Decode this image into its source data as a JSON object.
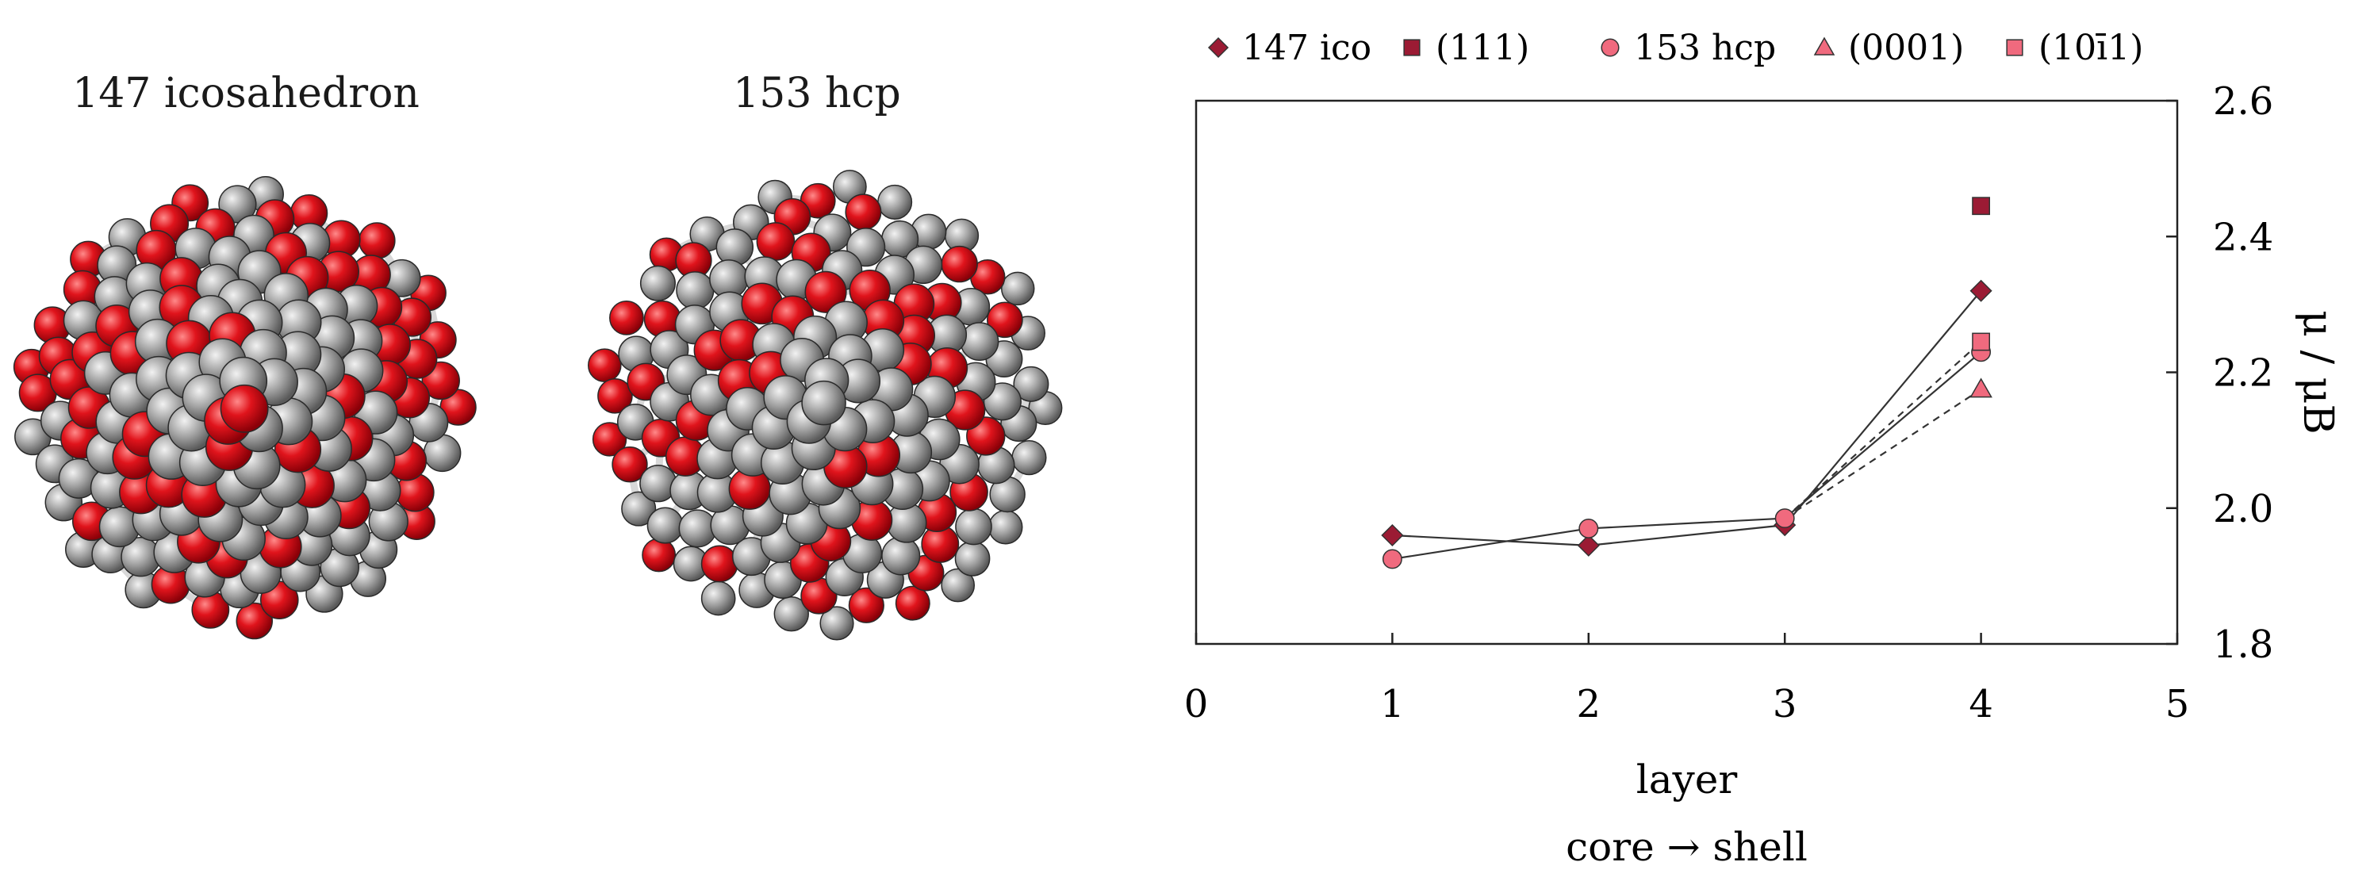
{
  "panels": {
    "ico_title": "147 icosahedron",
    "hcp_title": "153 hcp"
  },
  "colors": {
    "atom_red": "#e0141c",
    "atom_gray": "#9a9a9a",
    "dark_red": "#9b1b34",
    "pink": "#f06a7e"
  },
  "chart_data": {
    "type": "scatter",
    "xlabel": "layer",
    "xlabel2": "core → shell",
    "ylabel": "μ / μB",
    "xlim": [
      0,
      5
    ],
    "ylim": [
      1.8,
      2.6
    ],
    "xticks": [
      0,
      1,
      2,
      3,
      4,
      5
    ],
    "yticks": [
      1.8,
      2.0,
      2.2,
      2.4,
      2.6
    ],
    "grid": false,
    "legend_position": "top",
    "series": [
      {
        "name": "147 ico",
        "marker": "diamond",
        "color": "#9b1b34",
        "line": "solid",
        "x": [
          1,
          2,
          3,
          4
        ],
        "y": [
          1.96,
          1.945,
          1.975,
          2.32
        ]
      },
      {
        "name": "(111)",
        "marker": "square",
        "color": "#9b1b34",
        "line": "none",
        "x": [
          4
        ],
        "y": [
          2.445
        ]
      },
      {
        "name": "153 hcp",
        "marker": "circle",
        "color": "#f06a7e",
        "line": "solid",
        "x": [
          1,
          2,
          3,
          4
        ],
        "y": [
          1.925,
          1.97,
          1.985,
          2.23
        ]
      },
      {
        "name": "(0001)",
        "marker": "triangle",
        "color": "#f06a7e",
        "line": "dashed",
        "x": [
          3,
          4
        ],
        "y": [
          1.985,
          2.175
        ]
      },
      {
        "name": "(10̅1̅1)",
        "legend_label": "(10ī1)",
        "marker": "square",
        "color": "#f06a7e",
        "line": "dashed",
        "x": [
          3,
          4
        ],
        "y": [
          1.985,
          2.245
        ]
      }
    ]
  }
}
